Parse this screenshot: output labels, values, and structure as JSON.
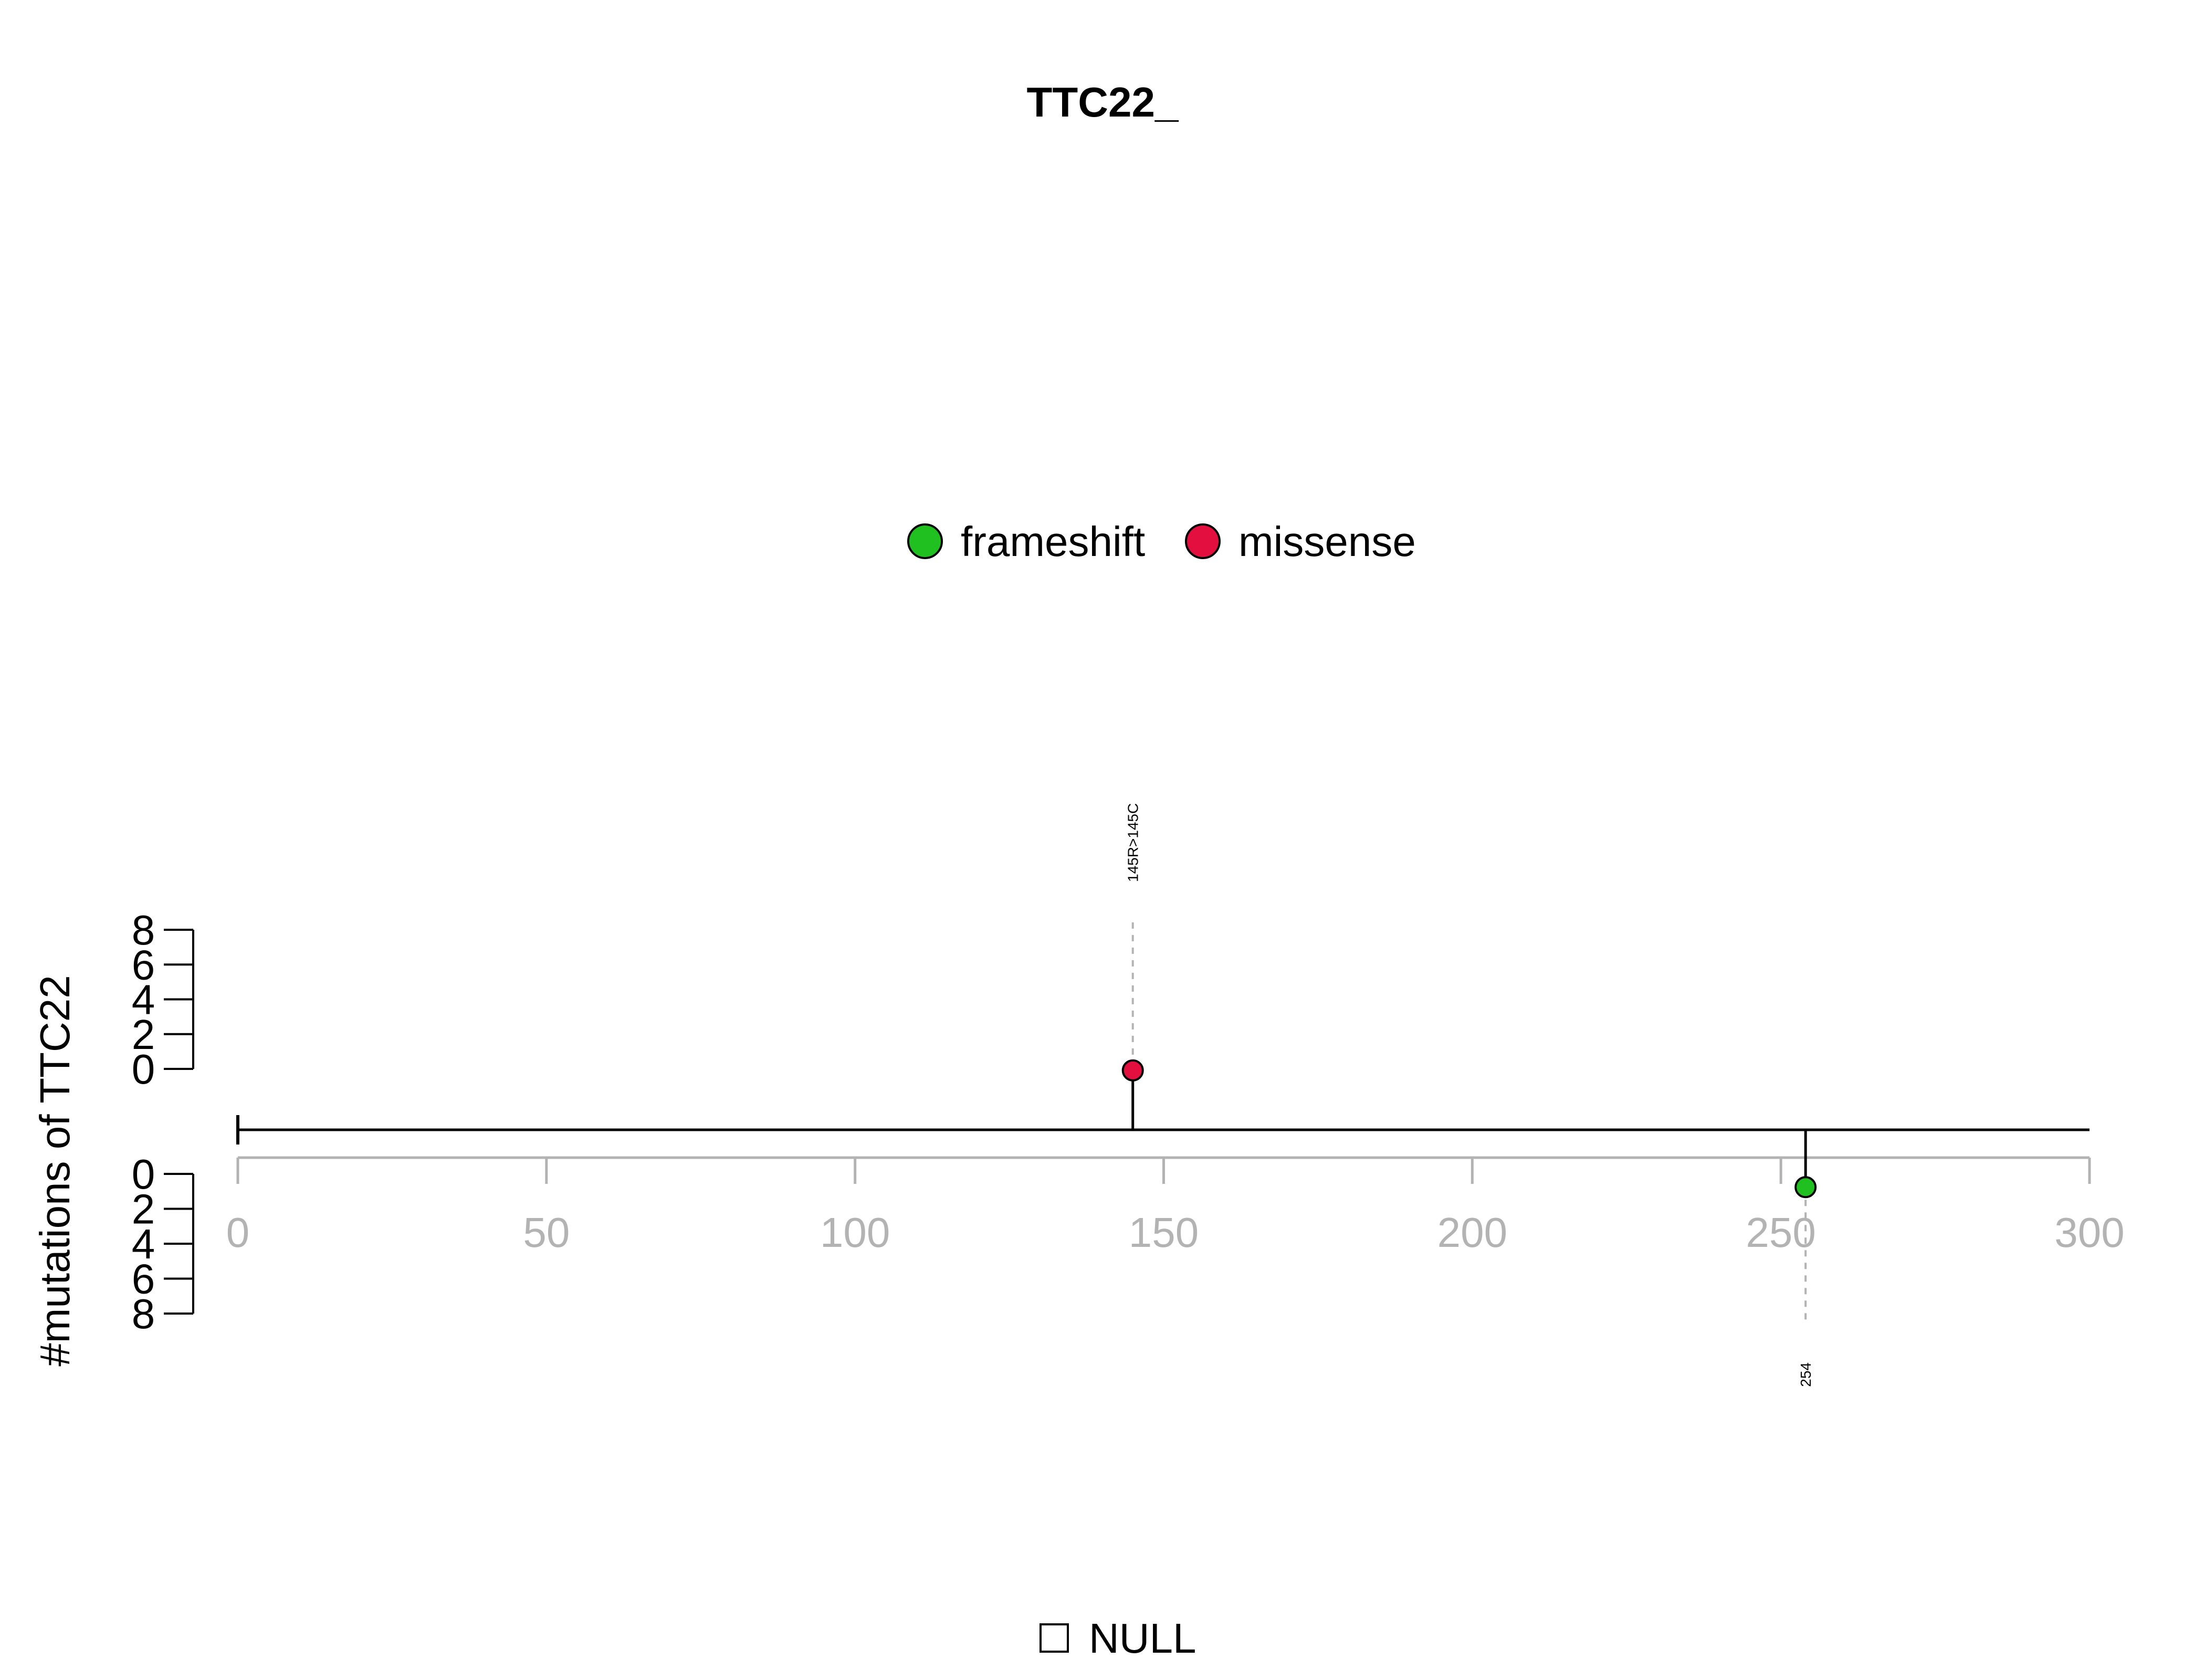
{
  "chart_data": {
    "type": "lollipop",
    "title": "TTC22_",
    "ylabel": "#mutations of TTC22",
    "xlim": [
      0,
      300
    ],
    "x_ticks": [
      0,
      50,
      100,
      150,
      200,
      250,
      300
    ],
    "y_ticks": [
      0,
      2,
      4,
      6,
      8
    ],
    "ylim": [
      0,
      8
    ],
    "legend": [
      {
        "name": "frameshift",
        "color": "#1fc01f"
      },
      {
        "name": "missense",
        "color": "#e3103f"
      }
    ],
    "mutations": [
      {
        "position": 145,
        "count": 1,
        "type": "missense",
        "label": "145R>145C",
        "side": "top",
        "color": "#e3103f"
      },
      {
        "position": 254,
        "count": 1,
        "type": "frameshift",
        "label": "254",
        "side": "bottom",
        "color": "#1fc01f"
      }
    ],
    "domain_legend": [
      {
        "name": "NULL",
        "color": "#ffffff"
      }
    ]
  }
}
